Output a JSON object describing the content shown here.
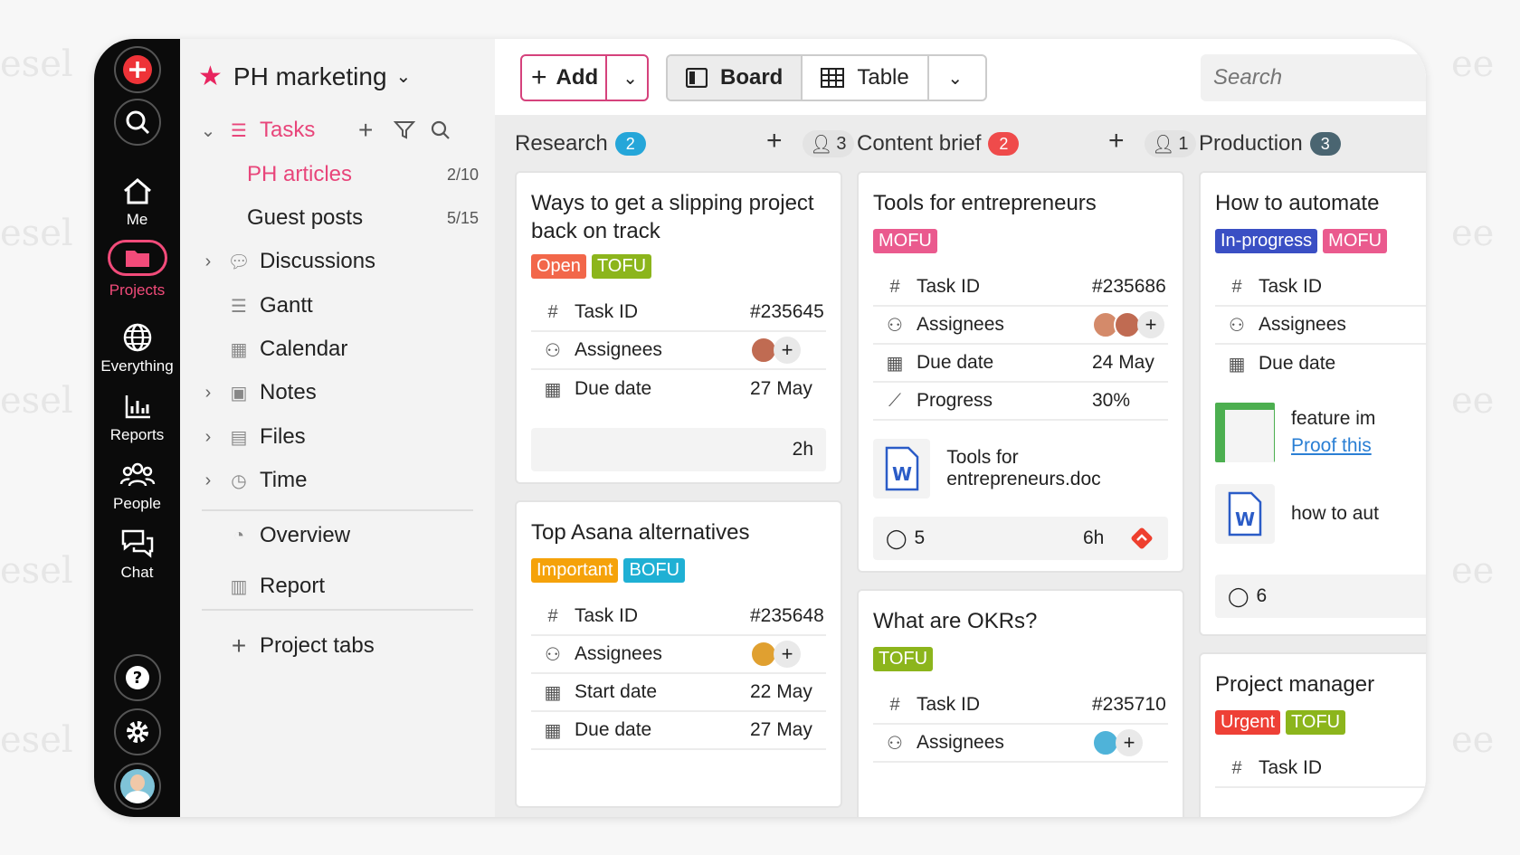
{
  "watermark": "esel",
  "rail": {
    "me": "Me",
    "projects": "Projects",
    "everything": "Everything",
    "reports": "Reports",
    "people": "People",
    "chat": "Chat"
  },
  "sidebar": {
    "project_name": "PH marketing",
    "tasks": "Tasks",
    "ph_articles": "PH articles",
    "ph_articles_count": "2/10",
    "guest_posts": "Guest posts",
    "guest_posts_count": "5/15",
    "discussions": "Discussions",
    "gantt": "Gantt",
    "calendar": "Calendar",
    "notes": "Notes",
    "files": "Files",
    "time": "Time",
    "overview": "Overview",
    "report": "Report",
    "project_tabs": "Project tabs"
  },
  "toolbar": {
    "add": "Add",
    "board": "Board",
    "table": "Table",
    "search_placeholder": "Search"
  },
  "columns": [
    {
      "name": "Research",
      "count": "2",
      "badge_color": "#25a6d9",
      "users": "3"
    },
    {
      "name": "Content brief",
      "count": "2",
      "badge_color": "#ef4b4b",
      "users": "1"
    },
    {
      "name": "Production",
      "count": "3",
      "badge_color": "#4a6571"
    }
  ],
  "cards": {
    "c1": {
      "title": "Ways to get a slipping project back on track",
      "tags": [
        "Open",
        "TOFU"
      ],
      "task_id_label": "Task ID",
      "task_id": "#235645",
      "assignees_label": "Assignees",
      "due_label": "Due date",
      "due": "27 May",
      "time": "2h"
    },
    "c2": {
      "title": "Top Asana alternatives",
      "tags": [
        "Important",
        "BOFU"
      ],
      "task_id_label": "Task ID",
      "task_id": "#235648",
      "assignees_label": "Assignees",
      "start_label": "Start date",
      "start": "22 May",
      "due_label": "Due date",
      "due": "27 May"
    },
    "c3": {
      "title": "Tools for entrepreneurs",
      "tags": [
        "MOFU"
      ],
      "task_id_label": "Task ID",
      "task_id": "#235686",
      "assignees_label": "Assignees",
      "due_label": "Due date",
      "due": "24 May",
      "progress_label": "Progress",
      "progress": "30%",
      "doc": "Tools for entrepreneurs.doc",
      "comments": "5",
      "time": "6h"
    },
    "c4": {
      "title": "What are OKRs?",
      "tags": [
        "TOFU"
      ],
      "task_id_label": "Task ID",
      "task_id": "#235710",
      "assignees_label": "Assignees"
    },
    "c5": {
      "title": "How to automate",
      "tags": [
        "In-progress",
        "MOFU"
      ],
      "task_id_label": "Task ID",
      "assignees_label": "Assignees",
      "due_label": "Due date",
      "att1": "feature im",
      "att1_link": "Proof this",
      "att2": "how to aut",
      "comments": "6"
    },
    "c6": {
      "title": "Project manager",
      "tags": [
        "Urgent",
        "TOFU"
      ],
      "task_id_label": "Task ID"
    }
  },
  "colors": {
    "accent": "#e8457a",
    "tag_open": "#f2674a",
    "tag_tofu": "#8cb51c",
    "tag_important": "#f5a20a",
    "tag_bofu": "#1fb0d4",
    "tag_mofu": "#ea5a8e",
    "tag_inprogress": "#3a4fc4",
    "tag_urgent": "#ee4036"
  }
}
